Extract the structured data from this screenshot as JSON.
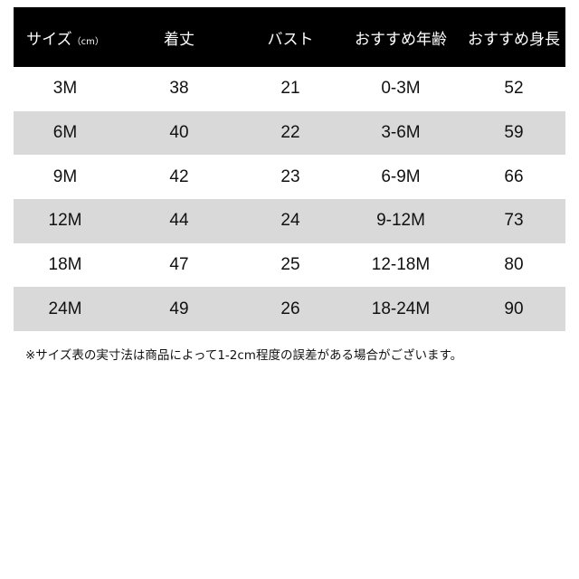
{
  "header": {
    "size": "サイズ",
    "unit": "（cm）",
    "length": "着丈",
    "bust": "バスト",
    "age": "おすすめ年齢",
    "height": "おすすめ身長"
  },
  "rows": [
    [
      "3M",
      "38",
      "21",
      "0-3M",
      "52"
    ],
    [
      "6M",
      "40",
      "22",
      "3-6M",
      "59"
    ],
    [
      "9M",
      "42",
      "23",
      "6-9M",
      "66"
    ],
    [
      "12M",
      "44",
      "24",
      "9-12M",
      "73"
    ],
    [
      "18M",
      "47",
      "25",
      "12-18M",
      "80"
    ],
    [
      "24M",
      "49",
      "26",
      "18-24M",
      "90"
    ]
  ],
  "note": "※サイズ表の実寸法は商品によって1-2cm程度の誤差がある場合がございます。",
  "colors": {
    "header_bg": "#000000",
    "alt_row": "#d9d9d9"
  }
}
